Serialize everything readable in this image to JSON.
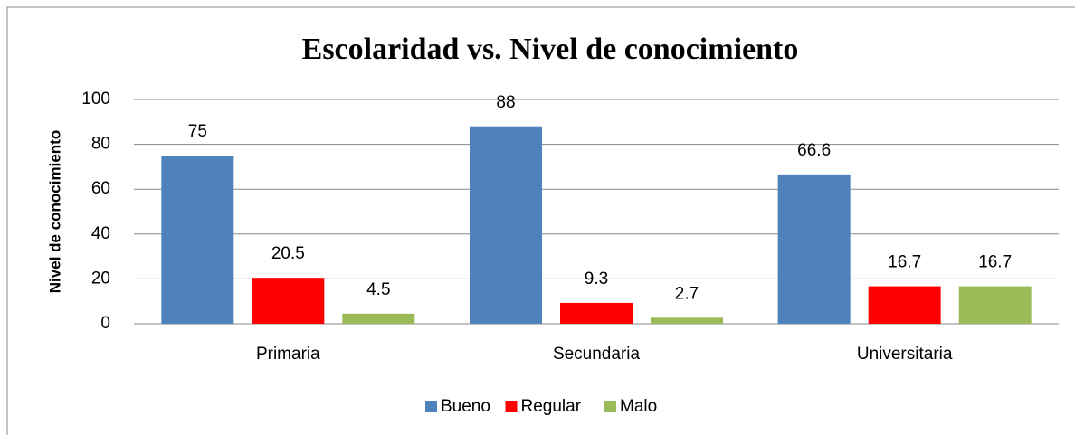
{
  "chart_data": {
    "type": "bar",
    "title": "Escolaridad vs. Nivel de conocimiento",
    "y_label": "Nivel de conocimiento",
    "categories": [
      "Primaria",
      "Secundaria",
      "Universitaria"
    ],
    "series": [
      {
        "name": "Bueno",
        "color": "#4f81bd",
        "values": [
          75,
          88,
          66.6
        ]
      },
      {
        "name": "Regular",
        "color": "#ff0000",
        "values": [
          20.5,
          9.3,
          16.7
        ]
      },
      {
        "name": "Malo",
        "color": "#9bbb59",
        "values": [
          4.5,
          2.7,
          16.7
        ]
      }
    ],
    "ylim": [
      0,
      100
    ],
    "yticks": [
      0,
      20,
      40,
      60,
      80,
      100
    ],
    "grid": true,
    "legend": "bottom"
  }
}
